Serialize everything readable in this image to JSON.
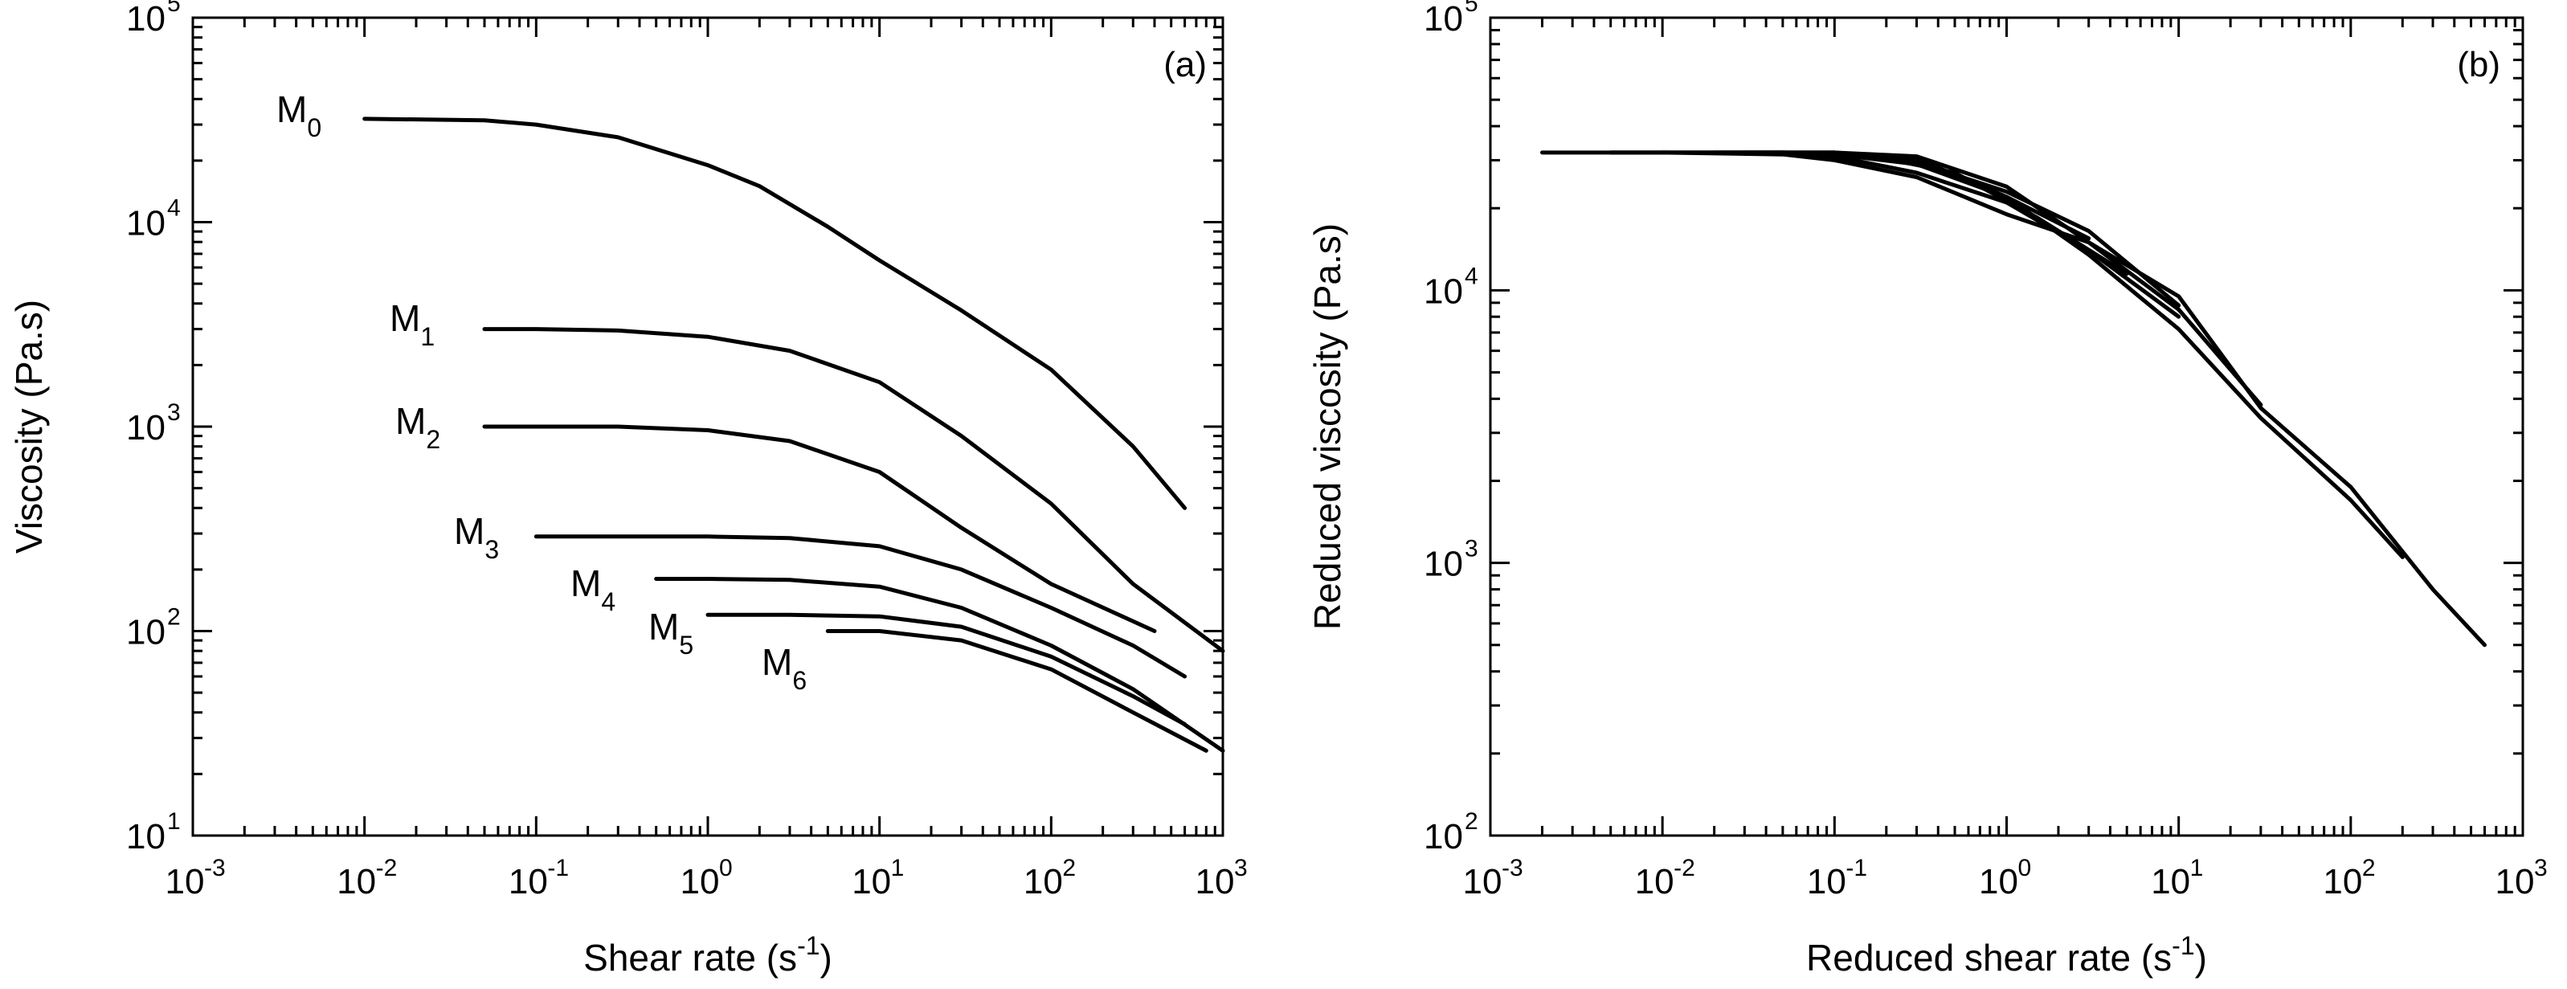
{
  "chart_data": [
    {
      "type": "line",
      "panel": "(a)",
      "xlabel": "Shear rate (s⁻¹)",
      "xlabel_parts": [
        "Shear rate (s",
        "-1",
        ")"
      ],
      "ylabel": "Viscosity  (Pa.s)",
      "xscale": "log",
      "yscale": "log",
      "xlim": [
        0.001,
        1000
      ],
      "ylim": [
        10,
        100000
      ],
      "xticks": [
        {
          "base": "10",
          "exp": "-3"
        },
        {
          "base": "10",
          "exp": "-2"
        },
        {
          "base": "10",
          "exp": "-1"
        },
        {
          "base": "10",
          "exp": "0"
        },
        {
          "base": "10",
          "exp": "1"
        },
        {
          "base": "10",
          "exp": "2"
        },
        {
          "base": "10",
          "exp": "3"
        }
      ],
      "yticks": [
        {
          "base": "10",
          "exp": "1"
        },
        {
          "base": "10",
          "exp": "2"
        },
        {
          "base": "10",
          "exp": "3"
        },
        {
          "base": "10",
          "exp": "4"
        },
        {
          "base": "10",
          "exp": "5"
        }
      ],
      "series": [
        {
          "name": "M0",
          "label": "M",
          "sub": "0",
          "x": [
            0.01,
            0.05,
            0.1,
            0.3,
            1,
            2,
            5,
            10,
            30,
            100,
            300,
            600
          ],
          "y": [
            32000,
            31500,
            30000,
            26000,
            19000,
            15000,
            9500,
            6500,
            3700,
            1900,
            800,
            400
          ]
        },
        {
          "name": "M1",
          "label": "M",
          "sub": "1",
          "x": [
            0.05,
            0.1,
            0.3,
            1,
            3,
            10,
            30,
            100,
            300,
            1000
          ],
          "y": [
            3000,
            3000,
            2950,
            2750,
            2350,
            1650,
            900,
            420,
            170,
            80
          ]
        },
        {
          "name": "M2",
          "label": "M",
          "sub": "2",
          "x": [
            0.05,
            0.1,
            0.3,
            1,
            3,
            10,
            30,
            100,
            400
          ],
          "y": [
            1000,
            1000,
            1000,
            960,
            850,
            600,
            320,
            170,
            100
          ]
        },
        {
          "name": "M3",
          "label": "M",
          "sub": "3",
          "x": [
            0.1,
            0.3,
            1,
            3,
            10,
            30,
            100,
            300,
            600
          ],
          "y": [
            290,
            290,
            290,
            285,
            260,
            200,
            130,
            85,
            60
          ]
        },
        {
          "name": "M4",
          "label": "M",
          "sub": "4",
          "x": [
            0.5,
            1,
            3,
            10,
            30,
            100,
            300,
            1000
          ],
          "y": [
            180,
            180,
            178,
            165,
            130,
            85,
            52,
            26
          ]
        },
        {
          "name": "M5",
          "label": "M",
          "sub": "5",
          "x": [
            1,
            3,
            10,
            30,
            100,
            300,
            600
          ],
          "y": [
            120,
            120,
            118,
            105,
            75,
            48,
            35
          ]
        },
        {
          "name": "M6",
          "label": "M",
          "sub": "6",
          "x": [
            5,
            10,
            30,
            100,
            300,
            800
          ],
          "y": [
            100,
            100,
            90,
            65,
            40,
            26
          ]
        }
      ]
    },
    {
      "type": "line",
      "panel": "(b)",
      "xlabel": "Reduced shear rate (s⁻¹)",
      "xlabel_parts": [
        "Reduced shear rate (s",
        "-1",
        ")"
      ],
      "ylabel": "Reduced viscosity (Pa.s)",
      "xscale": "log",
      "yscale": "log",
      "xlim": [
        0.001,
        1000
      ],
      "ylim": [
        100,
        100000
      ],
      "xticks": [
        {
          "base": "10",
          "exp": "-3"
        },
        {
          "base": "10",
          "exp": "-2"
        },
        {
          "base": "10",
          "exp": "-1"
        },
        {
          "base": "10",
          "exp": "0"
        },
        {
          "base": "10",
          "exp": "1"
        },
        {
          "base": "10",
          "exp": "2"
        },
        {
          "base": "10",
          "exp": "3"
        }
      ],
      "yticks": [
        {
          "base": "10",
          "exp": "2"
        },
        {
          "base": "10",
          "exp": "3"
        },
        {
          "base": "10",
          "exp": "4"
        },
        {
          "base": "10",
          "exp": "5"
        }
      ],
      "series": [
        {
          "name": "M0",
          "x": [
            0.002,
            0.01,
            0.05,
            0.1,
            0.3,
            1,
            3,
            10,
            30,
            100,
            300,
            600
          ],
          "y": [
            32000,
            32000,
            31500,
            30000,
            26000,
            19000,
            15000,
            9500,
            3700,
            1900,
            800,
            500
          ]
        },
        {
          "name": "M1",
          "x": [
            0.005,
            0.01,
            0.05,
            0.1,
            0.3,
            1,
            3,
            10,
            30,
            100,
            200
          ],
          "y": [
            32000,
            32000,
            32000,
            31500,
            29000,
            22000,
            13500,
            7200,
            3400,
            1700,
            1050
          ]
        },
        {
          "name": "M2",
          "x": [
            0.005,
            0.02,
            0.1,
            0.3,
            1,
            3,
            10,
            30
          ],
          "y": [
            32000,
            32000,
            32000,
            31000,
            24000,
            15000,
            8500,
            3800
          ]
        },
        {
          "name": "M3",
          "x": [
            0.01,
            0.05,
            0.1,
            0.3,
            1,
            3,
            10
          ],
          "y": [
            32000,
            32000,
            31000,
            27000,
            21000,
            14000,
            8000
          ]
        },
        {
          "name": "M4",
          "x": [
            0.02,
            0.1,
            0.3,
            1,
            3,
            10
          ],
          "y": [
            32000,
            32000,
            29500,
            23000,
            16500,
            8800
          ]
        },
        {
          "name": "M5",
          "x": [
            0.03,
            0.1,
            0.3,
            1,
            3
          ],
          "y": [
            32000,
            32000,
            30500,
            22000,
            15500
          ]
        },
        {
          "name": "M6",
          "x": [
            0.05,
            0.15,
            0.5,
            1.5,
            5
          ],
          "y": [
            32000,
            31500,
            27000,
            18500,
            11500
          ]
        }
      ]
    }
  ]
}
